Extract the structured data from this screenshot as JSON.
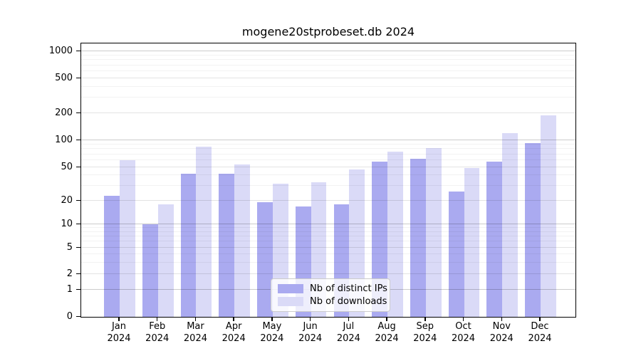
{
  "title": "mogene20stprobeset.db 2024",
  "chart_data": {
    "type": "bar",
    "title": "mogene20stprobeset.db 2024",
    "categories": [
      "Jan 2024",
      "Feb 2024",
      "Mar 2024",
      "Apr 2024",
      "May 2024",
      "Jun 2024",
      "Jul 2024",
      "Aug 2024",
      "Sep 2024",
      "Oct 2024",
      "Nov 2024",
      "Dec 2024"
    ],
    "months": [
      "Jan",
      "Feb",
      "Mar",
      "Apr",
      "May",
      "Jun",
      "Jul",
      "Aug",
      "Sep",
      "Oct",
      "Nov",
      "Dec"
    ],
    "year": "2024",
    "series": [
      {
        "name": "Nb of distinct IPs",
        "color": "#aaaaf0",
        "values": [
          23,
          10,
          42,
          42,
          19,
          17,
          18,
          58,
          62,
          26,
          58,
          93
        ]
      },
      {
        "name": "Nb of downloads",
        "color": "#dadaf7",
        "values": [
          60,
          18,
          85,
          54,
          32,
          33,
          47,
          75,
          82,
          49,
          120,
          190
        ]
      }
    ],
    "ylabel": "",
    "xlabel": "",
    "yscale": "log (0 baseline, symlog-style)",
    "ylim": [
      0,
      1200
    ],
    "y_ticks": [
      0,
      1,
      2,
      5,
      10,
      20,
      50,
      100,
      200,
      500,
      1000
    ],
    "grid": true,
    "legend_position": "lower center"
  },
  "colors": {
    "background": "#ffffff",
    "axis": "#000000",
    "grid_major": "rgba(0,0,0,0.20)",
    "grid_mid": "rgba(0,0,0,0.11)",
    "grid_minor": "rgba(0,0,0,0.05)"
  }
}
